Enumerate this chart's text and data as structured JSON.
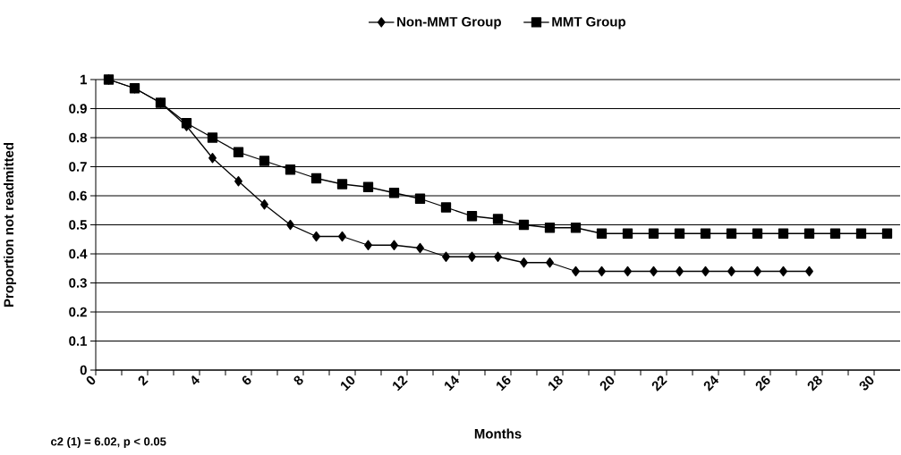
{
  "chart_data": {
    "type": "line",
    "xlabel": "Months",
    "ylabel": "Proportion not readmitted",
    "annotations": [
      "c2 (1) = 6.02, p < 0.05"
    ],
    "x": [
      0.5,
      1.5,
      2.5,
      3.5,
      4.5,
      5.5,
      6.5,
      7.5,
      8.5,
      9.5,
      10.5,
      11.5,
      12.5,
      13.5,
      14.5,
      15.5,
      16.5,
      17.5,
      18.5,
      19.5,
      20.5,
      21.5,
      22.5,
      23.5,
      24.5,
      25.5,
      26.5,
      27.5,
      28.5,
      29.5,
      30.5
    ],
    "series": [
      {
        "name": "Non-MMT Group",
        "color": "#000000",
        "marker": "diamond",
        "values": [
          1.0,
          0.97,
          0.92,
          0.84,
          0.73,
          0.65,
          0.57,
          0.5,
          0.46,
          0.46,
          0.43,
          0.43,
          0.42,
          0.39,
          0.39,
          0.39,
          0.37,
          0.37,
          0.34,
          0.34,
          0.34,
          0.34,
          0.34,
          0.34,
          0.34,
          0.34,
          0.34,
          0.34,
          null,
          null,
          null
        ]
      },
      {
        "name": "MMT Group",
        "color": "#000000",
        "marker": "square",
        "values": [
          1.0,
          0.97,
          0.92,
          0.85,
          0.8,
          0.75,
          0.72,
          0.69,
          0.66,
          0.64,
          0.63,
          0.61,
          0.59,
          0.56,
          0.53,
          0.52,
          0.5,
          0.49,
          0.49,
          0.47,
          0.47,
          0.47,
          0.47,
          0.47,
          0.47,
          0.47,
          0.47,
          0.47,
          0.47,
          0.47,
          0.47
        ]
      }
    ],
    "xlim": [
      0,
      31
    ],
    "xticks": [
      0,
      {
        "value": 1,
        "label": null
      },
      2,
      {
        "value": 3,
        "label": null
      },
      4,
      {
        "value": 5,
        "label": null
      },
      6,
      {
        "value": 7,
        "label": null
      },
      8,
      {
        "value": 9,
        "label": null
      },
      10,
      {
        "value": 11,
        "label": null
      },
      12,
      {
        "value": 13,
        "label": null
      },
      14,
      {
        "value": 15,
        "label": null
      },
      16,
      {
        "value": 17,
        "label": null
      },
      18,
      {
        "value": 19,
        "label": null
      },
      20,
      {
        "value": 21,
        "label": null
      },
      22,
      {
        "value": 23,
        "label": null
      },
      24,
      {
        "value": 25,
        "label": null
      },
      26,
      {
        "value": 27,
        "label": null
      },
      28,
      {
        "value": 29,
        "label": null
      },
      30
    ],
    "ylim": [
      0,
      1
    ],
    "yticks": [
      0,
      0.1,
      0.2,
      0.3,
      0.4,
      0.5,
      0.6,
      0.7,
      0.8,
      0.9,
      1
    ],
    "grid": "y",
    "legend": "top",
    "line_style": "solid"
  }
}
